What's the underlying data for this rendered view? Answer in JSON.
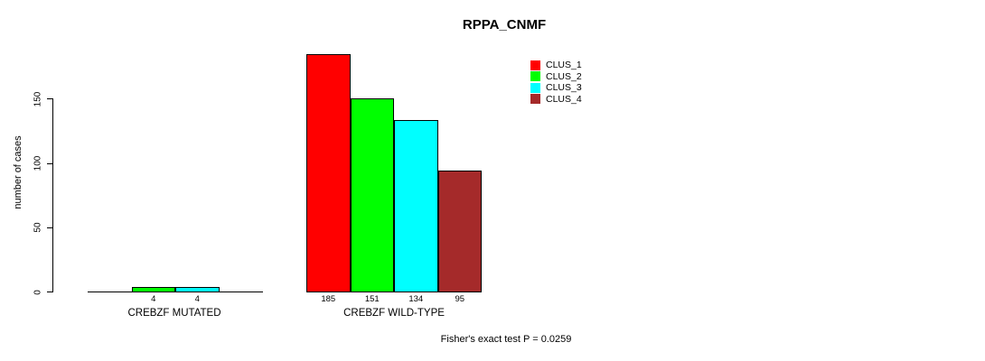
{
  "chart_data": {
    "type": "bar",
    "title": "RPPA_CNMF",
    "ylabel": "number of cases",
    "xlabel": "",
    "ylim": [
      0,
      150
    ],
    "yticks": [
      0,
      50,
      100,
      150
    ],
    "grid": false,
    "legend_position": "top-right",
    "groups": [
      "CREBZF MUTATED",
      "CREBZF WILD-TYPE"
    ],
    "series": [
      {
        "name": "CLUS_1",
        "color": "#ff0000",
        "values": [
          0,
          185
        ]
      },
      {
        "name": "CLUS_2",
        "color": "#00ff00",
        "values": [
          4,
          151
        ]
      },
      {
        "name": "CLUS_3",
        "color": "#00ffff",
        "values": [
          4,
          134
        ]
      },
      {
        "name": "CLUS_4",
        "color": "#a52a2a",
        "values": [
          0,
          95
        ]
      }
    ],
    "annotation": "Fisher's exact test P = 0.0259"
  },
  "colors": {
    "background": "#ffffff",
    "text": "#000000",
    "bar_border": "#000000",
    "axis": "#000000"
  }
}
